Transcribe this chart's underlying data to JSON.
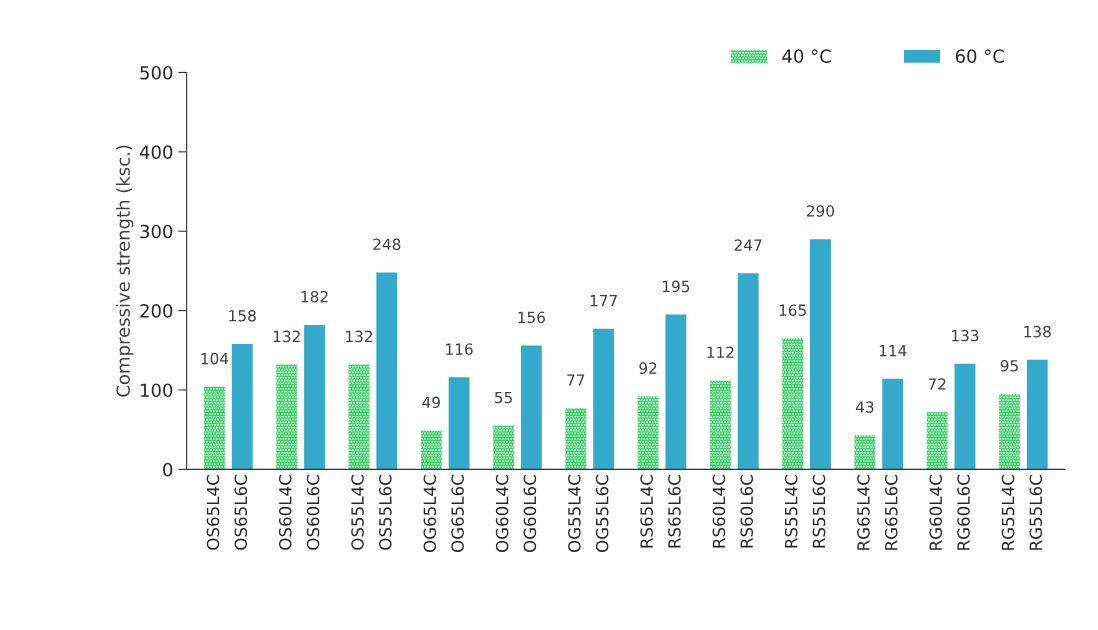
{
  "chart_data": {
    "type": "bar",
    "ylabel": "Compressive strength (ksc.)",
    "categories": [
      "OS65L4C",
      "OS65L6C",
      "OS60L4C",
      "OS60L6C",
      "OS55L4C",
      "OS55L6C",
      "OG65L4C",
      "OG65L6C",
      "OG60L4C",
      "OG60L6C",
      "OG55L4C",
      "OG55L6C",
      "RS65L4C",
      "RS65L6C",
      "RS60L4C",
      "RS60L6C",
      "RS55L4C",
      "RS55L6C",
      "RG65L4C",
      "RG65L6C",
      "RG60L4C",
      "RG60L6C",
      "RG55L4C",
      "RG55L6C"
    ],
    "series": [
      {
        "name": "40 °C",
        "color": "#2ecc5e",
        "values": [
          104,
          null,
          132,
          null,
          132,
          null,
          49,
          null,
          55,
          null,
          77,
          null,
          92,
          null,
          112,
          null,
          165,
          null,
          43,
          null,
          72,
          null,
          95,
          null
        ]
      },
      {
        "name": "60 °C",
        "color": "#35a9cc",
        "values": [
          null,
          158,
          null,
          182,
          null,
          248,
          null,
          116,
          null,
          156,
          null,
          177,
          null,
          195,
          null,
          247,
          null,
          290,
          null,
          114,
          null,
          133,
          null,
          138
        ]
      }
    ],
    "ylim": [
      0,
      500
    ],
    "yticks": [
      0,
      100,
      200,
      300,
      400,
      500
    ],
    "grid": false,
    "legend": "top right",
    "data_labels": true
  }
}
